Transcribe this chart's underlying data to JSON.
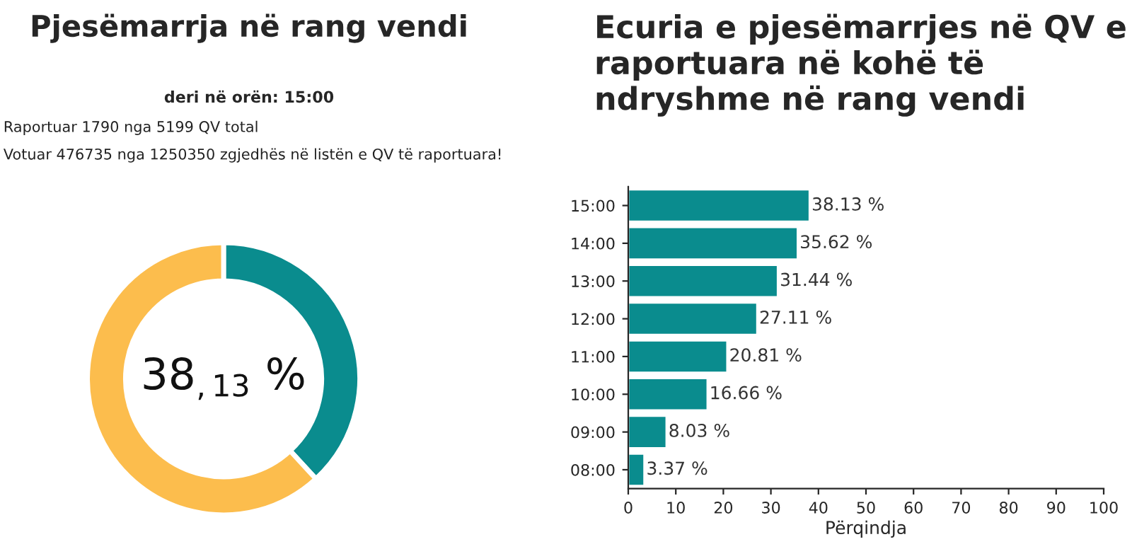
{
  "chart_data": [
    {
      "type": "donut",
      "title": "Pjesëmarrja në rang vendi",
      "subtitle": "deri në orën: 15:00",
      "annotations": [
        "Raportuar 1790 nga 5199 QV total",
        "Votuar 476735 nga 1250350 zgjedhës në listën e QV të raportuara!",
        "38$_{,13}$ %"
      ],
      "categories": [
        null,
        null
      ],
      "values": [
        38.13,
        61.87
      ],
      "colors": [
        "#0a8c8e",
        "#fcbd4d"
      ]
    },
    {
      "type": "bar",
      "orientation": "horizontal",
      "title": "Ecuria e pjesëmarrjes në QV e raportuara në kohë të ndryshme në rang vendi",
      "xlabel": "Përqindja",
      "categories": [
        "15:00",
        "14:00",
        "13:00",
        "12:00",
        "11:00",
        "10:00",
        "09:00",
        "08:00"
      ],
      "values": [
        38.13,
        35.62,
        31.44,
        27.11,
        20.81,
        16.66,
        8.03,
        3.37
      ],
      "value_labels": [
        "38.13 %",
        "35.62 %",
        "31.44 %",
        "27.11 %",
        "20.81 %",
        "16.66 %",
        "8.03 %",
        "3.37 %"
      ],
      "color": "#0a8c8e",
      "xlim": [
        0,
        100
      ],
      "xticks": [
        0,
        10,
        20,
        30,
        40,
        50,
        60,
        70,
        80,
        90,
        100
      ],
      "grid": false,
      "legend": false
    }
  ]
}
